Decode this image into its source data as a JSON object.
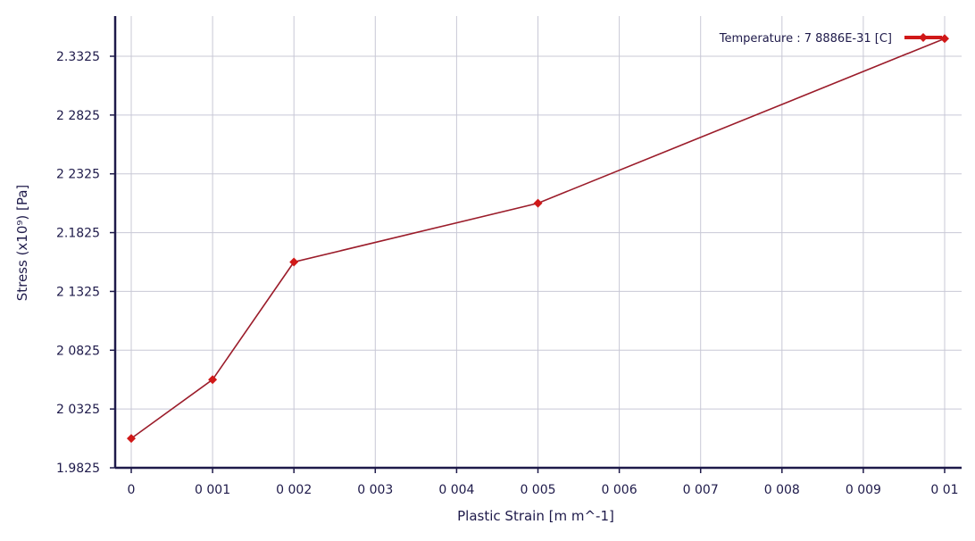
{
  "chart_data": {
    "type": "line",
    "xlabel": "Plastic Strain  [m m^-1]",
    "ylabel": "Stress  (x10⁹)  [Pa]",
    "xlim": [
      0,
      0.01
    ],
    "ylim": [
      1.9825,
      2.3525
    ],
    "x_ticks": [
      0,
      0.001,
      0.002,
      0.003,
      0.004,
      0.005,
      0.006,
      0.007,
      0.008,
      0.009,
      0.01
    ],
    "x_tick_labels": [
      "0",
      "0 001",
      "0 002",
      "0 003",
      "0 004",
      "0 005",
      "0 006",
      "0 007",
      "0 008",
      "0 009",
      "0 01"
    ],
    "y_ticks": [
      1.9825,
      2.0325,
      2.0825,
      2.1325,
      2.1825,
      2.2325,
      2.2825,
      2.3325
    ],
    "y_tick_labels": [
      "1.9825",
      "2 0325",
      "2 0825",
      "2 1325",
      "2.1825",
      "2 2325",
      "2 2825",
      "2.3325"
    ],
    "grid": true,
    "legend_position": "top-right",
    "series": [
      {
        "name": "Temperature : 7 8886E-31 [C]",
        "color": "#d01818",
        "line_color": "#9b1c2a",
        "x": [
          0,
          0.001,
          0.002,
          0.005,
          0.01
        ],
        "y": [
          2.0075,
          2.0575,
          2.1575,
          2.2075,
          2.3475
        ]
      }
    ]
  }
}
